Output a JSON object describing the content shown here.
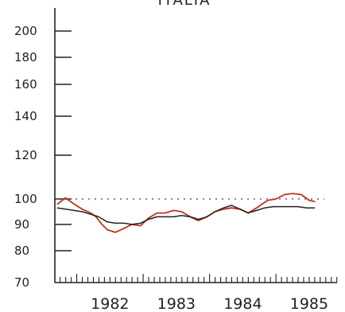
{
  "chart_data": {
    "type": "line",
    "title": "ITALIA",
    "xlabel": "",
    "ylabel": "",
    "x_categories": [
      "1982",
      "1983",
      "1984",
      "1985"
    ],
    "xlim": [
      1981.67,
      1985.92
    ],
    "y_ticks": [
      70,
      80,
      90,
      100,
      120,
      140,
      160,
      180,
      200
    ],
    "ylim": [
      70,
      200
    ],
    "reference_line": {
      "value": 100,
      "style": "dotted"
    },
    "legend": "none",
    "grid": false,
    "series": [
      {
        "color": "#c0301c",
        "x": [
          1981.71,
          1981.83,
          1981.96,
          1982.08,
          1982.21,
          1982.29,
          1982.38,
          1982.46,
          1982.58,
          1982.71,
          1982.83,
          1982.96,
          1983.08,
          1983.21,
          1983.33,
          1983.46,
          1983.58,
          1983.71,
          1983.83,
          1983.96,
          1984.08,
          1984.21,
          1984.33,
          1984.46,
          1984.58,
          1984.71,
          1984.79,
          1984.88,
          1985.0,
          1985.13,
          1985.25,
          1985.38,
          1985.5,
          1985.58
        ],
        "values": [
          98,
          100.5,
          98,
          96,
          94.5,
          93,
          90,
          88,
          87,
          88.5,
          90,
          89.5,
          92.5,
          94.5,
          94.5,
          95.5,
          95,
          93,
          91.5,
          93,
          95,
          96,
          96.5,
          96,
          94.5,
          96.5,
          98,
          99.5,
          100,
          102,
          102.5,
          102,
          99.5,
          99
        ]
      },
      {
        "color": "#222222",
        "x": [
          1981.71,
          1981.83,
          1981.96,
          1982.08,
          1982.21,
          1982.33,
          1982.46,
          1982.58,
          1982.71,
          1982.83,
          1982.96,
          1983.08,
          1983.21,
          1983.33,
          1983.46,
          1983.58,
          1983.71,
          1983.83,
          1983.96,
          1984.08,
          1984.21,
          1984.33,
          1984.46,
          1984.58,
          1984.71,
          1984.83,
          1984.96,
          1985.08,
          1985.21,
          1985.33,
          1985.46,
          1985.58
        ],
        "values": [
          96.5,
          96,
          95.5,
          95,
          94,
          93,
          91,
          90.5,
          90.5,
          90,
          90.5,
          92,
          93,
          93,
          93,
          93.5,
          93,
          92,
          93,
          95,
          96.5,
          97.5,
          96,
          94.5,
          95.5,
          96.5,
          97,
          97,
          97,
          97,
          96.5,
          96.5
        ]
      }
    ]
  }
}
